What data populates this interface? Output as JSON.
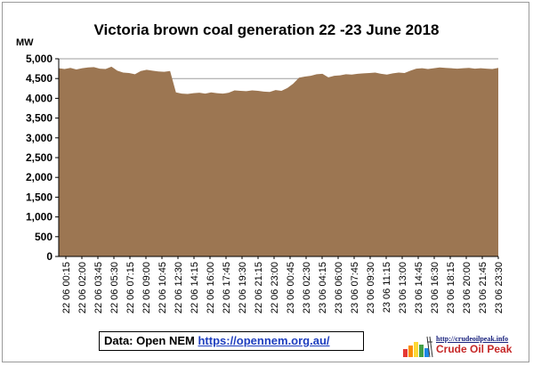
{
  "chart_data": {
    "type": "area",
    "title": "Victoria brown coal generation 22 -23 June 2018",
    "ylabel": "MW",
    "xlabel": "",
    "ylim": [
      0,
      5000
    ],
    "y_ticks": [
      "0",
      "500",
      "1,000",
      "1,500",
      "2,000",
      "2,500",
      "3,000",
      "3,500",
      "4,000",
      "4,500",
      "5,000"
    ],
    "x_tick_labels": [
      "22 06 00:15",
      "22 06 02:00",
      "22 06 03:45",
      "22 06 05:30",
      "22 06 07:15",
      "22 06 09:00",
      "22 06 10:45",
      "22 06 12:30",
      "22 06 14:15",
      "22 06 16:00",
      "22 06 17:45",
      "22 06 19:30",
      "22 06 21:15",
      "22 06 23:00",
      "23 06 00:45",
      "23 06 02:30",
      "23 06 04:15",
      "23 06 06:00",
      "23 06 07:45",
      "23 06 09:30",
      "23 06 11:15",
      "23 06 13:00",
      "23 06 14:45",
      "23 06 16:30",
      "23 06 18:15",
      "23 06 20:00",
      "23 06 21:45",
      "23 06 23:30"
    ],
    "grid": "horizontal",
    "series": [
      {
        "color": "#9c7652",
        "values": [
          4760,
          4740,
          4770,
          4730,
          4760,
          4780,
          4790,
          4750,
          4740,
          4800,
          4700,
          4650,
          4640,
          4610,
          4690,
          4720,
          4700,
          4680,
          4670,
          4690,
          4150,
          4120,
          4110,
          4130,
          4140,
          4120,
          4150,
          4130,
          4120,
          4140,
          4200,
          4190,
          4180,
          4200,
          4190,
          4170,
          4160,
          4210,
          4190,
          4260,
          4370,
          4520,
          4550,
          4570,
          4610,
          4620,
          4530,
          4570,
          4580,
          4610,
          4600,
          4620,
          4630,
          4640,
          4650,
          4620,
          4600,
          4630,
          4650,
          4640,
          4700,
          4750,
          4760,
          4740,
          4760,
          4780,
          4770,
          4760,
          4750,
          4760,
          4770,
          4750,
          4760,
          4750,
          4740,
          4770
        ]
      }
    ]
  },
  "source_note": {
    "prefix": "Data: Open NEM ",
    "link": "https://opennem.org.au/"
  },
  "logo": {
    "url": "http://crudeoilpeak.info",
    "name": "Crude Oil Peak"
  }
}
